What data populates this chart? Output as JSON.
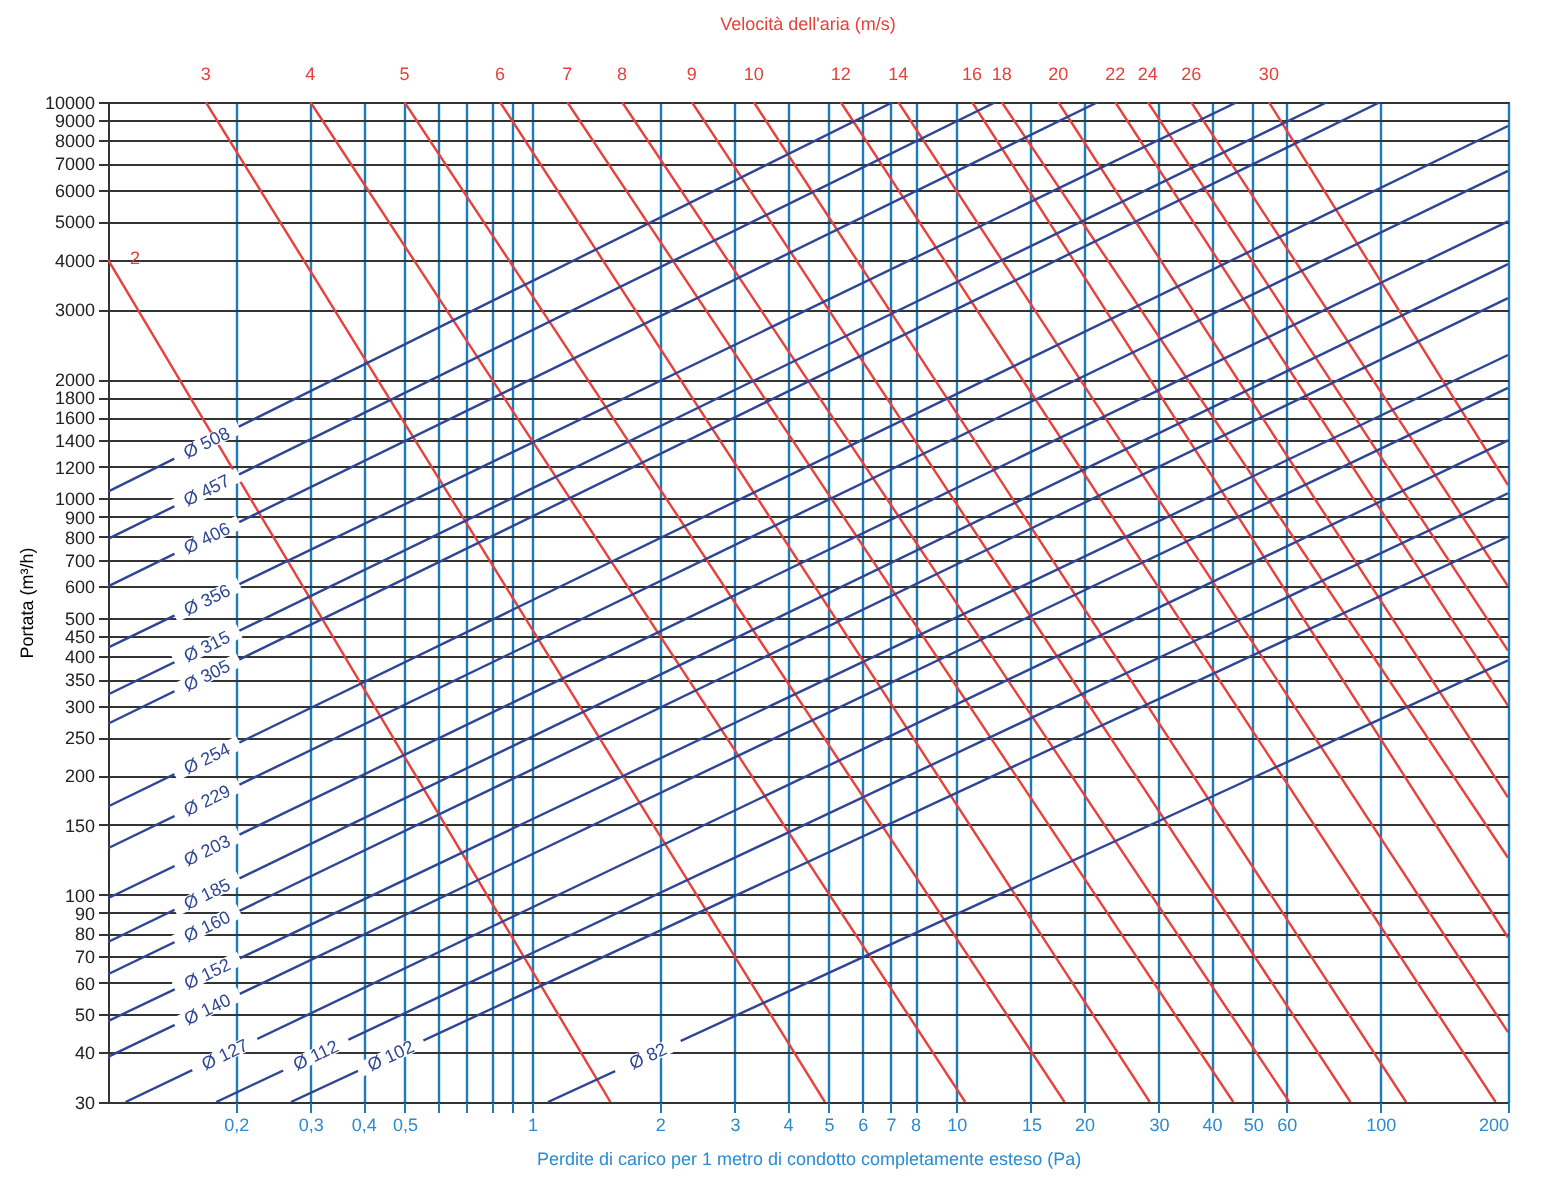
{
  "chart_data": {
    "type": "line",
    "title": "Velocità dell'aria (m/s)",
    "xlabel": "Perdite di carico per 1 metro di condotto completamente esteso (Pa)",
    "ylabel": "Portata (m³/h)",
    "log": "xy",
    "grid": true,
    "xlim": [
      0.1,
      200
    ],
    "ylim": [
      30,
      10000
    ],
    "xticks": [
      {
        "value": 0.2,
        "label": "0,2"
      },
      {
        "value": 0.3,
        "label": "0,3"
      },
      {
        "value": 0.4,
        "label": "0,4"
      },
      {
        "value": 0.5,
        "label": "0,5"
      },
      {
        "value": 0.6,
        "label": null
      },
      {
        "value": 0.7,
        "label": null
      },
      {
        "value": 0.8,
        "label": null
      },
      {
        "value": 0.9,
        "label": null
      },
      1,
      2,
      3,
      4,
      5,
      6,
      7,
      8,
      10,
      15,
      20,
      30,
      40,
      50,
      60,
      100,
      200
    ],
    "yticks": [
      30,
      40,
      50,
      60,
      70,
      80,
      90,
      100,
      150,
      200,
      250,
      300,
      350,
      400,
      450,
      500,
      600,
      700,
      800,
      900,
      1000,
      1200,
      1400,
      1600,
      1800,
      2000,
      3000,
      4000,
      5000,
      6000,
      7000,
      8000,
      9000,
      10000
    ],
    "series": [
      {
        "name": "2",
        "color": "#e8403a",
        "x": [
          0.1,
          1.53
        ],
        "values": [
          4000,
          30
        ]
      },
      {
        "name": "3",
        "color": "#e8403a",
        "x": [
          0.17,
          4.9
        ],
        "values": [
          10000,
          30
        ]
      },
      {
        "name": "4",
        "color": "#e8403a",
        "x": [
          0.3,
          10.5
        ],
        "values": [
          10000,
          30
        ]
      },
      {
        "name": "5",
        "color": "#e8403a",
        "x": [
          0.5,
          18
        ],
        "values": [
          10000,
          30
        ]
      },
      {
        "name": "6",
        "color": "#e8403a",
        "x": [
          0.84,
          28.6
        ],
        "values": [
          10000,
          30
        ]
      },
      {
        "name": "7",
        "color": "#e8403a",
        "x": [
          1.21,
          45
        ],
        "values": [
          10000,
          30
        ]
      },
      {
        "name": "8",
        "color": "#e8403a",
        "x": [
          1.63,
          61
        ],
        "values": [
          10000,
          30
        ]
      },
      {
        "name": "9",
        "color": "#e8403a",
        "x": [
          2.38,
          85
        ],
        "values": [
          10000,
          30
        ]
      },
      {
        "name": "10",
        "color": "#e8403a",
        "x": [
          3.33,
          115
        ],
        "values": [
          10000,
          30
        ]
      },
      {
        "name": "12",
        "color": "#e8403a",
        "x": [
          5.34,
          187
        ],
        "values": [
          10000,
          30
        ]
      },
      {
        "name": "14",
        "color": "#e8403a",
        "x": [
          7.3,
          200
        ],
        "values": [
          10000,
          45
        ]
      },
      {
        "name": "16",
        "color": "#e8403a",
        "x": [
          10.9,
          200
        ],
        "values": [
          10000,
          78
        ]
      },
      {
        "name": "18",
        "color": "#e8403a",
        "x": [
          12.8,
          200
        ],
        "values": [
          10000,
          124
        ]
      },
      {
        "name": "20",
        "color": "#e8403a",
        "x": [
          17.4,
          200
        ],
        "values": [
          10000,
          176
        ]
      },
      {
        "name": "22",
        "color": "#e8403a",
        "x": [
          23.7,
          200
        ],
        "values": [
          10000,
          300
        ]
      },
      {
        "name": "24",
        "color": "#e8403a",
        "x": [
          28.3,
          200
        ],
        "values": [
          10000,
          413
        ]
      },
      {
        "name": "26",
        "color": "#e8403a",
        "x": [
          35.8,
          200
        ],
        "values": [
          10000,
          600
        ]
      },
      {
        "name": "30",
        "color": "#e8403a",
        "x": [
          54.6,
          200
        ],
        "values": [
          10000,
          1080
        ]
      },
      {
        "name": "Ø 508",
        "color": "#2e4595",
        "x": [
          0.1,
          7.1
        ],
        "values": [
          1040,
          10000
        ]
      },
      {
        "name": "Ø 457",
        "color": "#2e4595",
        "x": [
          0.1,
          12.4
        ],
        "values": [
          790,
          10000
        ]
      },
      {
        "name": "Ø 406",
        "color": "#2e4595",
        "x": [
          0.1,
          21.6
        ],
        "values": [
          600,
          10000
        ]
      },
      {
        "name": "Ø 356",
        "color": "#2e4595",
        "x": [
          0.1,
          46
        ],
        "values": [
          420,
          10000
        ]
      },
      {
        "name": "Ø 315",
        "color": "#2e4595",
        "x": [
          0.1,
          75
        ],
        "values": [
          320,
          10000
        ]
      },
      {
        "name": "Ø 305",
        "color": "#2e4595",
        "x": [
          0.1,
          100
        ],
        "values": [
          270,
          10000
        ]
      },
      {
        "name": "Ø 254",
        "color": "#2e4595",
        "x": [
          0.1,
          200
        ],
        "values": [
          167,
          8700
        ]
      },
      {
        "name": "Ø 229",
        "color": "#2e4595",
        "x": [
          0.1,
          200
        ],
        "values": [
          131,
          6700
        ]
      },
      {
        "name": "Ø 203",
        "color": "#2e4595",
        "x": [
          0.1,
          200
        ],
        "values": [
          98,
          5000
        ]
      },
      {
        "name": "Ø 185",
        "color": "#2e4595",
        "x": [
          0.1,
          200
        ],
        "values": [
          76,
          3900
        ]
      },
      {
        "name": "Ø 160",
        "color": "#2e4595",
        "x": [
          0.1,
          200
        ],
        "values": [
          63,
          3200
        ]
      },
      {
        "name": "Ø 152",
        "color": "#2e4595",
        "x": [
          0.1,
          200
        ],
        "values": [
          48,
          2300
        ]
      },
      {
        "name": "Ø 140",
        "color": "#2e4595",
        "x": [
          0.1,
          200
        ],
        "values": [
          39,
          1900
        ]
      },
      {
        "name": "Ø 127",
        "color": "#2e4595",
        "x": [
          0.11,
          200
        ],
        "values": [
          30,
          1400
        ]
      },
      {
        "name": "Ø 112",
        "color": "#2e4595",
        "x": [
          0.18,
          200
        ],
        "values": [
          30,
          1030
        ]
      },
      {
        "name": "Ø 102",
        "color": "#2e4595",
        "x": [
          0.27,
          200
        ],
        "values": [
          30,
          800
        ]
      },
      {
        "name": "Ø 82",
        "color": "#2e4595",
        "x": [
          1.09,
          200
        ],
        "values": [
          30,
          390
        ]
      }
    ]
  }
}
